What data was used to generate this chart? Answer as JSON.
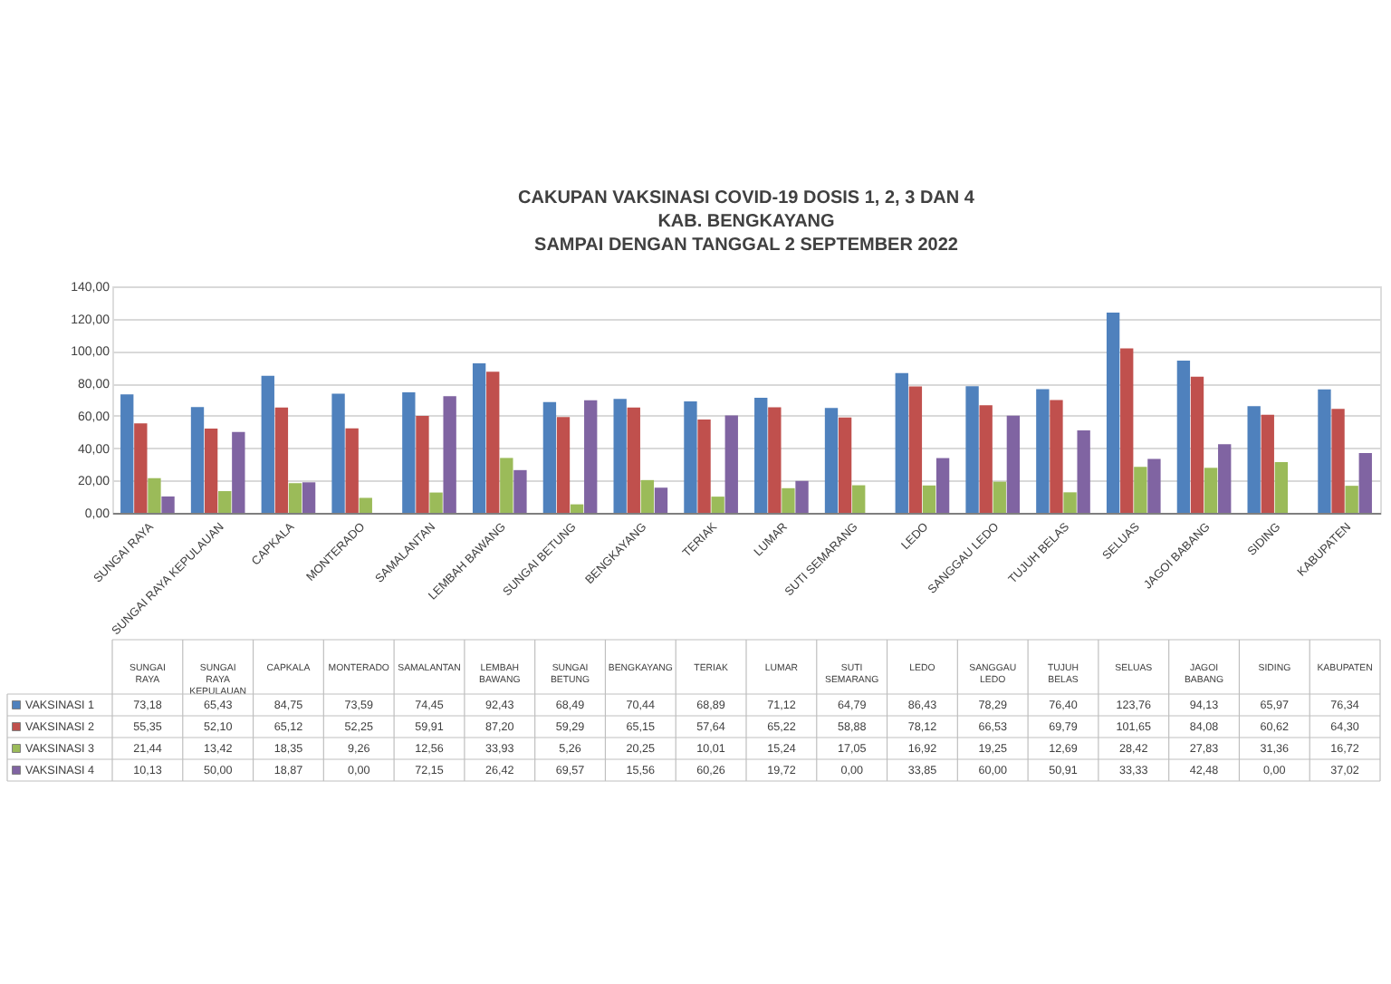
{
  "chart_data": {
    "type": "bar",
    "title": "CAKUPAN VAKSINASI COVID-19 DOSIS 1, 2, 3 DAN 4\nKAB. BENGKAYANG\nSAMPAI DENGAN TANGGAL 2 SEPTEMBER 2022",
    "categories": [
      "SUNGAI RAYA",
      "SUNGAI RAYA KEPULAUAN",
      "CAPKALA",
      "MONTERADO",
      "SAMALANTAN",
      "LEMBAH BAWANG",
      "SUNGAI BETUNG",
      "BENGKAYANG",
      "TERIAK",
      "LUMAR",
      "SUTI SEMARANG",
      "LEDO",
      "SANGGAU LEDO",
      "TUJUH BELAS",
      "SELUAS",
      "JAGOI BABANG",
      "SIDING",
      "KABUPATEN"
    ],
    "series": [
      {
        "name": "VAKSINASI 1",
        "color": "#4f81bd",
        "values": [
          73.18,
          65.43,
          84.75,
          73.59,
          74.45,
          92.43,
          68.49,
          70.44,
          68.89,
          71.12,
          64.79,
          86.43,
          78.29,
          76.4,
          123.76,
          94.13,
          65.97,
          76.34
        ],
        "value_labels": [
          "73,18",
          "65,43",
          "84,75",
          "73,59",
          "74,45",
          "92,43",
          "68,49",
          "70,44",
          "68,89",
          "71,12",
          "64,79",
          "86,43",
          "78,29",
          "76,40",
          "123,76",
          "94,13",
          "65,97",
          "76,34"
        ]
      },
      {
        "name": "VAKSINASI 2",
        "color": "#c0504d",
        "values": [
          55.35,
          52.1,
          65.12,
          52.25,
          59.91,
          87.2,
          59.29,
          65.15,
          57.64,
          65.22,
          58.88,
          78.12,
          66.53,
          69.79,
          101.65,
          84.08,
          60.62,
          64.3
        ],
        "value_labels": [
          "55,35",
          "52,10",
          "65,12",
          "52,25",
          "59,91",
          "87,20",
          "59,29",
          "65,15",
          "57,64",
          "65,22",
          "58,88",
          "78,12",
          "66,53",
          "69,79",
          "101,65",
          "84,08",
          "60,62",
          "64,30"
        ]
      },
      {
        "name": "VAKSINASI 3",
        "color": "#9bbb59",
        "values": [
          21.44,
          13.42,
          18.35,
          9.26,
          12.56,
          33.93,
          5.26,
          20.25,
          10.01,
          15.24,
          17.05,
          16.92,
          19.25,
          12.69,
          28.42,
          27.83,
          31.36,
          16.72
        ],
        "value_labels": [
          "21,44",
          "13,42",
          "18,35",
          "9,26",
          "12,56",
          "33,93",
          "5,26",
          "20,25",
          "10,01",
          "15,24",
          "17,05",
          "16,92",
          "19,25",
          "12,69",
          "28,42",
          "27,83",
          "31,36",
          "16,72"
        ]
      },
      {
        "name": "VAKSINASI 4",
        "color": "#8064a2",
        "values": [
          10.13,
          50.0,
          18.87,
          0.0,
          72.15,
          26.42,
          69.57,
          15.56,
          60.26,
          19.72,
          0.0,
          33.85,
          60.0,
          50.91,
          33.33,
          42.48,
          0.0,
          37.02
        ],
        "value_labels": [
          "10,13",
          "50,00",
          "18,87",
          "0,00",
          "72,15",
          "26,42",
          "69,57",
          "15,56",
          "60,26",
          "19,72",
          "0,00",
          "33,85",
          "60,00",
          "50,91",
          "33,33",
          "42,48",
          "0,00",
          "37,02"
        ]
      }
    ],
    "ylim": [
      0,
      140
    ],
    "yticks": [
      {
        "value": 0,
        "label": "0,00"
      },
      {
        "value": 20,
        "label": "20,00"
      },
      {
        "value": 40,
        "label": "40,00"
      },
      {
        "value": 60,
        "label": "60,00"
      },
      {
        "value": 80,
        "label": "80,00"
      },
      {
        "value": 100,
        "label": "100,00"
      },
      {
        "value": 120,
        "label": "120,00"
      },
      {
        "value": 140,
        "label": "140,00"
      }
    ],
    "grid": "y",
    "legend": "bottom"
  }
}
